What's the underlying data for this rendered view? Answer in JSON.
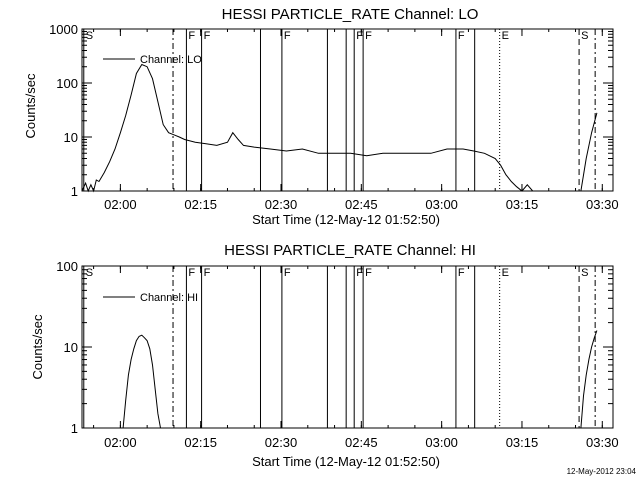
{
  "chart_data": [
    {
      "type": "line",
      "title": "HESSI PARTICLE_RATE Channel: LO",
      "xlabel": "Start Time (12-May-12 01:52:50)",
      "ylabel": "Counts/sec",
      "y_scale": "log",
      "ylim": [
        1,
        1000
      ],
      "xlim": [
        "01:52:50",
        "03:32:00"
      ],
      "grid": false,
      "legend": "top-left",
      "x_ticks": [
        "02:00",
        "02:15",
        "02:30",
        "02:45",
        "03:00",
        "03:15",
        "03:30"
      ],
      "y_ticks": [
        "1",
        "10",
        "100",
        "1000"
      ],
      "series": [
        {
          "name": "Channel: LO",
          "x": [
            "01:52:50",
            "01:53:30",
            "01:54:00",
            "01:54:30",
            "01:55:00",
            "01:55:30",
            "01:56:00",
            "01:57:00",
            "01:58:00",
            "01:59:00",
            "02:00:00",
            "02:01:00",
            "02:02:00",
            "02:03:00",
            "02:04:00",
            "02:05:00",
            "02:06:00",
            "02:07:00",
            "02:08:00",
            "02:09:00",
            "02:10:00",
            "02:11:00",
            "02:12:00",
            "02:14:00",
            "02:16:00",
            "02:18:00",
            "02:20:00",
            "02:21:00",
            "02:22:00",
            "02:23:00",
            "02:25:00",
            "02:28:00",
            "02:31:00",
            "02:34:00",
            "02:37:00",
            "02:40:00",
            "02:43:00",
            "02:46:00",
            "02:49:00",
            "02:52:00",
            "02:55:00",
            "02:58:00",
            "03:01:00",
            "03:04:00",
            "03:06:00",
            "03:08:00",
            "03:10:00",
            "03:11:00",
            "03:12:00",
            "03:13:00",
            "03:14:00",
            "03:15:00",
            "03:16:00",
            "03:17:00",
            "03:26:00",
            "03:27:00",
            "03:28:00",
            "03:29:00"
          ],
          "y": [
            1.0,
            1.4,
            1.0,
            1.3,
            1.0,
            1.6,
            1.5,
            2.2,
            3.5,
            6,
            12,
            25,
            60,
            150,
            220,
            200,
            120,
            45,
            17,
            12,
            11,
            10,
            9,
            8,
            7.5,
            7,
            8,
            12,
            9,
            7,
            6.5,
            6,
            5.5,
            6,
            5,
            5,
            5,
            4.5,
            5,
            5,
            5,
            5,
            6,
            6,
            5.5,
            5,
            4,
            3,
            2,
            1.5,
            1.2,
            1.0,
            1.3,
            1.0,
            1.0,
            4,
            12,
            28
          ]
        }
      ],
      "annotations": [
        "S",
        "F",
        "F",
        "F",
        "F",
        "F",
        "F",
        "E",
        "S"
      ]
    },
    {
      "type": "line",
      "title": "HESSI PARTICLE_RATE Channel: HI",
      "xlabel": "Start Time (12-May-12 01:52:50)",
      "ylabel": "Counts/sec",
      "y_scale": "log",
      "ylim": [
        1,
        100
      ],
      "xlim": [
        "01:52:50",
        "03:32:00"
      ],
      "grid": false,
      "legend": "top-left",
      "x_ticks": [
        "02:00",
        "02:15",
        "02:30",
        "02:45",
        "03:00",
        "03:15",
        "03:30"
      ],
      "y_ticks": [
        "1",
        "10",
        "100"
      ],
      "series": [
        {
          "name": "Channel: HI",
          "x": [
            "02:00:30",
            "02:01:00",
            "02:01:30",
            "02:02:00",
            "02:02:30",
            "02:03:00",
            "02:03:30",
            "02:04:00",
            "02:04:30",
            "02:05:00",
            "02:05:30",
            "02:06:00",
            "02:06:30",
            "02:07:00",
            "02:07:30",
            "03:26:00",
            "03:26:30",
            "03:27:00",
            "03:27:30",
            "03:28:00",
            "03:28:30",
            "03:29:00"
          ],
          "y": [
            1.0,
            2.2,
            4.5,
            7,
            9.5,
            12,
            13.5,
            14,
            13,
            12,
            9.5,
            6,
            3,
            1.5,
            1.0,
            1.0,
            2.5,
            4.5,
            7,
            10,
            13,
            16
          ]
        }
      ],
      "annotations": [
        "S",
        "F",
        "F",
        "F",
        "F",
        "F",
        "F",
        "E",
        "S"
      ]
    }
  ],
  "footer": {
    "timestamp": "12-May-2012 23:04"
  }
}
